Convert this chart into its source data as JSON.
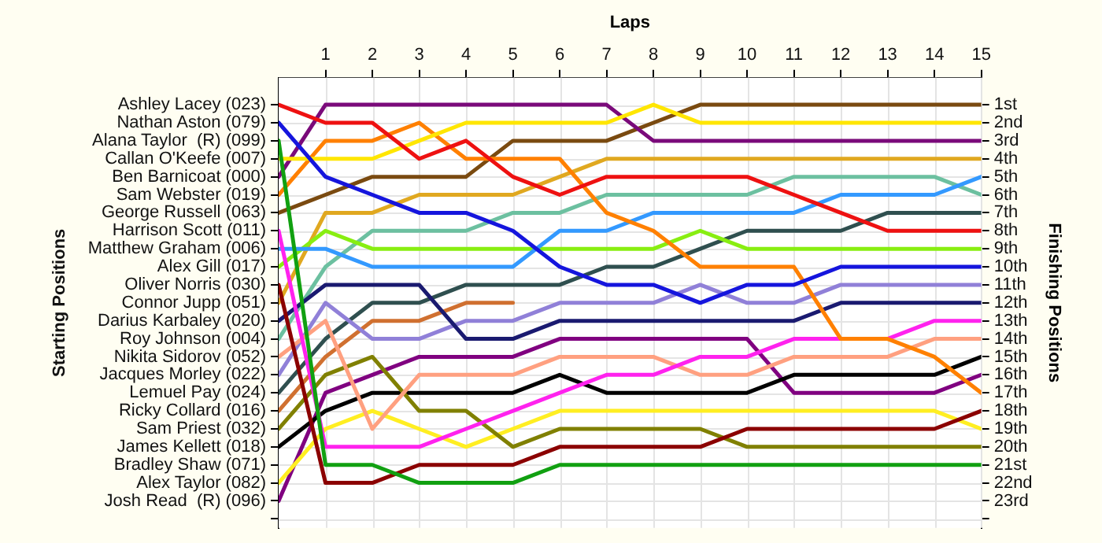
{
  "chart_data": {
    "type": "line",
    "xlabel": "Laps",
    "ylabel": "Finishing Positions",
    "annotations": [
      "Starting Positions",
      "Ashley Lacey (023)",
      "Nathan Aston (079)",
      "Alana Taylor  (R) (099)",
      "Callan O'Keefe (007)",
      "Ben Barnicoat (000)",
      "Sam Webster (019)",
      "George Russell (063)",
      "Harrison Scott (011)",
      "Matthew Graham (006)",
      "Alex Gill (017)",
      "Oliver Norris (030)",
      "Connor Jupp (051)",
      "Darius Karbaley (020)",
      "Roy Johnson (004)",
      "Nikita Sidorov (052)",
      "Jacques Morley (022)",
      "Lemuel Pay (024)",
      "Ricky Collard (016)",
      "Sam Priest (032)",
      "James Kellett (018)",
      "Bradley Shaw (071)",
      "Alex Taylor (082)",
      "Josh Read  (R) (096)"
    ],
    "x": [
      0,
      1,
      2,
      3,
      4,
      5,
      6,
      7,
      8,
      9,
      10,
      11,
      12,
      13,
      14,
      15
    ],
    "xlim": [
      0,
      15
    ],
    "xticks": [
      1,
      2,
      3,
      4,
      5,
      6,
      7,
      8,
      9,
      10,
      11,
      12,
      13,
      14,
      15
    ],
    "ylim": [
      24.5,
      -0.5
    ],
    "yticks": [
      {
        "value": 1,
        "label": "1st"
      },
      {
        "value": 2,
        "label": "2nd"
      },
      {
        "value": 3,
        "label": "3rd"
      },
      {
        "value": 4,
        "label": "4th"
      },
      {
        "value": 5,
        "label": "5th"
      },
      {
        "value": 6,
        "label": "6th"
      },
      {
        "value": 7,
        "label": "7th"
      },
      {
        "value": 8,
        "label": "8th"
      },
      {
        "value": 9,
        "label": "9th"
      },
      {
        "value": 10,
        "label": "10th"
      },
      {
        "value": 11,
        "label": "11th"
      },
      {
        "value": 12,
        "label": "12th"
      },
      {
        "value": 13,
        "label": "13th"
      },
      {
        "value": 14,
        "label": "14th"
      },
      {
        "value": 15,
        "label": "15th"
      },
      {
        "value": 16,
        "label": "16th"
      },
      {
        "value": 17,
        "label": "17th"
      },
      {
        "value": 18,
        "label": "18th"
      },
      {
        "value": 19,
        "label": "19th"
      },
      {
        "value": 20,
        "label": "20th"
      },
      {
        "value": 21,
        "label": "21st"
      },
      {
        "value": 22,
        "label": "22nd"
      },
      {
        "value": 23,
        "label": "23rd"
      },
      {
        "value": 24,
        "label": null
      }
    ],
    "grid": true,
    "legend": false,
    "marker": "none",
    "line_style": "solid",
    "series": [
      {
        "color": "#ee1111",
        "values": [
          1,
          2,
          2,
          4,
          3,
          5,
          6,
          5,
          5,
          5,
          5,
          6,
          7,
          8,
          8,
          8
        ]
      },
      {
        "color": "#1515dd",
        "values": [
          2,
          5,
          6,
          7,
          7,
          8,
          10,
          11,
          11,
          12,
          11,
          11,
          10,
          10,
          10,
          10
        ]
      },
      {
        "color": "#11a011",
        "values": [
          3,
          21,
          21,
          22,
          22,
          22,
          21,
          21,
          21,
          21,
          21,
          21,
          21,
          21,
          21,
          21
        ]
      },
      {
        "color": "#ffe600",
        "values": [
          4,
          4,
          4,
          3,
          2,
          2,
          2,
          2,
          1,
          2,
          2,
          2,
          2,
          2,
          2,
          2
        ]
      },
      {
        "color": "#7a0a7a",
        "values": [
          5,
          1,
          1,
          1,
          1,
          1,
          1,
          1,
          3,
          3,
          3,
          3,
          3,
          3,
          3,
          3
        ]
      },
      {
        "color": "#ff8000",
        "values": [
          6,
          3,
          3,
          2,
          4,
          4,
          4,
          7,
          8,
          10,
          10,
          10,
          14,
          14,
          15,
          17
        ]
      },
      {
        "color": "#7a4a10",
        "values": [
          7,
          6,
          5,
          5,
          5,
          3,
          3,
          3,
          2,
          1,
          1,
          1,
          1,
          1,
          1,
          1
        ]
      },
      {
        "color": "#ff22ee",
        "values": [
          8,
          20,
          20,
          20,
          19,
          18,
          17,
          16,
          16,
          15,
          15,
          14,
          14,
          14,
          13,
          13
        ]
      },
      {
        "color": "#3399ff",
        "values": [
          9,
          9,
          10,
          10,
          10,
          10,
          8,
          8,
          7,
          7,
          7,
          7,
          6,
          6,
          6,
          5
        ]
      },
      {
        "color": "#88ee11",
        "values": [
          10,
          8,
          9,
          9,
          9,
          9,
          9,
          9,
          9,
          8,
          9,
          9,
          9,
          9,
          9,
          9
        ]
      },
      {
        "color": "#8b0000",
        "values": [
          11,
          22,
          22,
          21,
          21,
          21,
          20,
          20,
          20,
          20,
          19,
          19,
          19,
          19,
          19,
          18
        ]
      },
      {
        "color": "#e0a820",
        "values": [
          12,
          7,
          7,
          6,
          6,
          6,
          5,
          4,
          4,
          4,
          4,
          4,
          4,
          4,
          4,
          4
        ]
      },
      {
        "color": "#1a1a70",
        "values": [
          13,
          11,
          11,
          11,
          14,
          14,
          13,
          13,
          13,
          13,
          13,
          13,
          12,
          12,
          12,
          12
        ]
      },
      {
        "color": "#6cc0a0",
        "values": [
          14,
          10,
          8,
          8,
          8,
          7,
          7,
          6,
          6,
          6,
          6,
          5,
          5,
          5,
          5,
          6
        ]
      },
      {
        "color": "#ffa080",
        "values": [
          15,
          13,
          19,
          16,
          16,
          16,
          15,
          15,
          15,
          16,
          16,
          15,
          15,
          15,
          14,
          14
        ]
      },
      {
        "color": "#9080d8",
        "values": [
          16,
          12,
          14,
          14,
          13,
          13,
          12,
          12,
          12,
          11,
          12,
          12,
          11,
          11,
          11,
          11
        ]
      },
      {
        "color": "#2f4f4f",
        "values": [
          17,
          14,
          12,
          12,
          11,
          11,
          11,
          10,
          10,
          9,
          8,
          8,
          8,
          7,
          7,
          7
        ]
      },
      {
        "color": "#d07030",
        "values": [
          18,
          15,
          13,
          13,
          12,
          12,
          null,
          null,
          null,
          null,
          null,
          null,
          null,
          null,
          null,
          null
        ]
      },
      {
        "color": "#808000",
        "values": [
          19,
          16,
          15,
          18,
          18,
          20,
          19,
          19,
          19,
          19,
          20,
          20,
          20,
          20,
          20,
          20
        ]
      },
      {
        "color": "#000000",
        "values": [
          20,
          18,
          17,
          17,
          17,
          17,
          16,
          17,
          17,
          17,
          17,
          16,
          16,
          16,
          16,
          15
        ]
      },
      {
        "color": "#ffee22",
        "values": [
          22,
          19,
          18,
          19,
          20,
          19,
          18,
          18,
          18,
          18,
          18,
          18,
          18,
          18,
          18,
          19
        ]
      },
      {
        "color": "#800080",
        "values": [
          23,
          17,
          16,
          15,
          15,
          15,
          14,
          14,
          14,
          14,
          14,
          17,
          17,
          17,
          17,
          16
        ]
      }
    ]
  }
}
